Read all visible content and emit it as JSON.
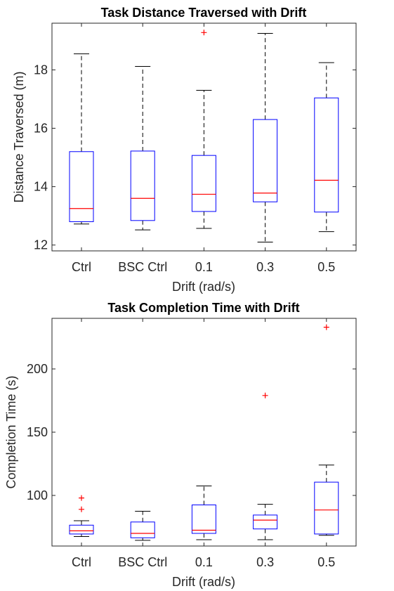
{
  "colors": {
    "box": "#0000ff",
    "median": "#ff0000",
    "whisker": "#000000",
    "outlier": "#ff0000",
    "axis": "#262626"
  },
  "chart_data": [
    {
      "type": "box",
      "title": "Task Distance Traversed with Drift",
      "xlabel": "Drift (rad/s)",
      "ylabel": "Distance Traversed (m)",
      "categories": [
        "Ctrl",
        "BSC Ctrl",
        "0.1",
        "0.3",
        "0.5"
      ],
      "ylim": [
        11.8,
        19.6
      ],
      "yticks": [
        12,
        14,
        16,
        18
      ],
      "ytick_labels": [
        "12",
        "14",
        "16",
        "18"
      ],
      "boxes": [
        {
          "whisker_low": 12.72,
          "q1": 12.8,
          "median": 13.25,
          "q3": 15.2,
          "whisker_high": 18.55,
          "outliers": []
        },
        {
          "whisker_low": 12.52,
          "q1": 12.84,
          "median": 13.6,
          "q3": 15.22,
          "whisker_high": 18.12,
          "outliers": []
        },
        {
          "whisker_low": 12.57,
          "q1": 13.15,
          "median": 13.74,
          "q3": 15.07,
          "whisker_high": 17.3,
          "outliers": [
            19.28
          ]
        },
        {
          "whisker_low": 12.1,
          "q1": 13.48,
          "median": 13.78,
          "q3": 16.3,
          "whisker_high": 19.25,
          "outliers": []
        },
        {
          "whisker_low": 12.46,
          "q1": 13.13,
          "median": 14.22,
          "q3": 17.04,
          "whisker_high": 18.25,
          "outliers": []
        }
      ]
    },
    {
      "type": "box",
      "title": "Task Completion Time with Drift",
      "xlabel": "Drift (rad/s)",
      "ylabel": "Completion Time (s)",
      "categories": [
        "Ctrl",
        "BSC Ctrl",
        "0.1",
        "0.3",
        "0.5"
      ],
      "ylim": [
        60,
        240
      ],
      "yticks": [
        100,
        150,
        200
      ],
      "ytick_labels": [
        "100",
        "150",
        "200"
      ],
      "boxes": [
        {
          "whisker_low": 67.5,
          "q1": 69.5,
          "median": 72,
          "q3": 76.5,
          "whisker_high": 80,
          "outliers": [
            89,
            98
          ]
        },
        {
          "whisker_low": 64.5,
          "q1": 66.5,
          "median": 70,
          "q3": 79,
          "whisker_high": 87.5,
          "outliers": []
        },
        {
          "whisker_low": 65,
          "q1": 70,
          "median": 72.5,
          "q3": 92.5,
          "whisker_high": 107.5,
          "outliers": []
        },
        {
          "whisker_low": 65,
          "q1": 73.5,
          "median": 80.5,
          "q3": 84.5,
          "whisker_high": 93,
          "outliers": [
            179
          ]
        },
        {
          "whisker_low": 68.5,
          "q1": 69.5,
          "median": 88.5,
          "q3": 110.5,
          "whisker_high": 124,
          "outliers": [
            233
          ]
        }
      ]
    }
  ]
}
